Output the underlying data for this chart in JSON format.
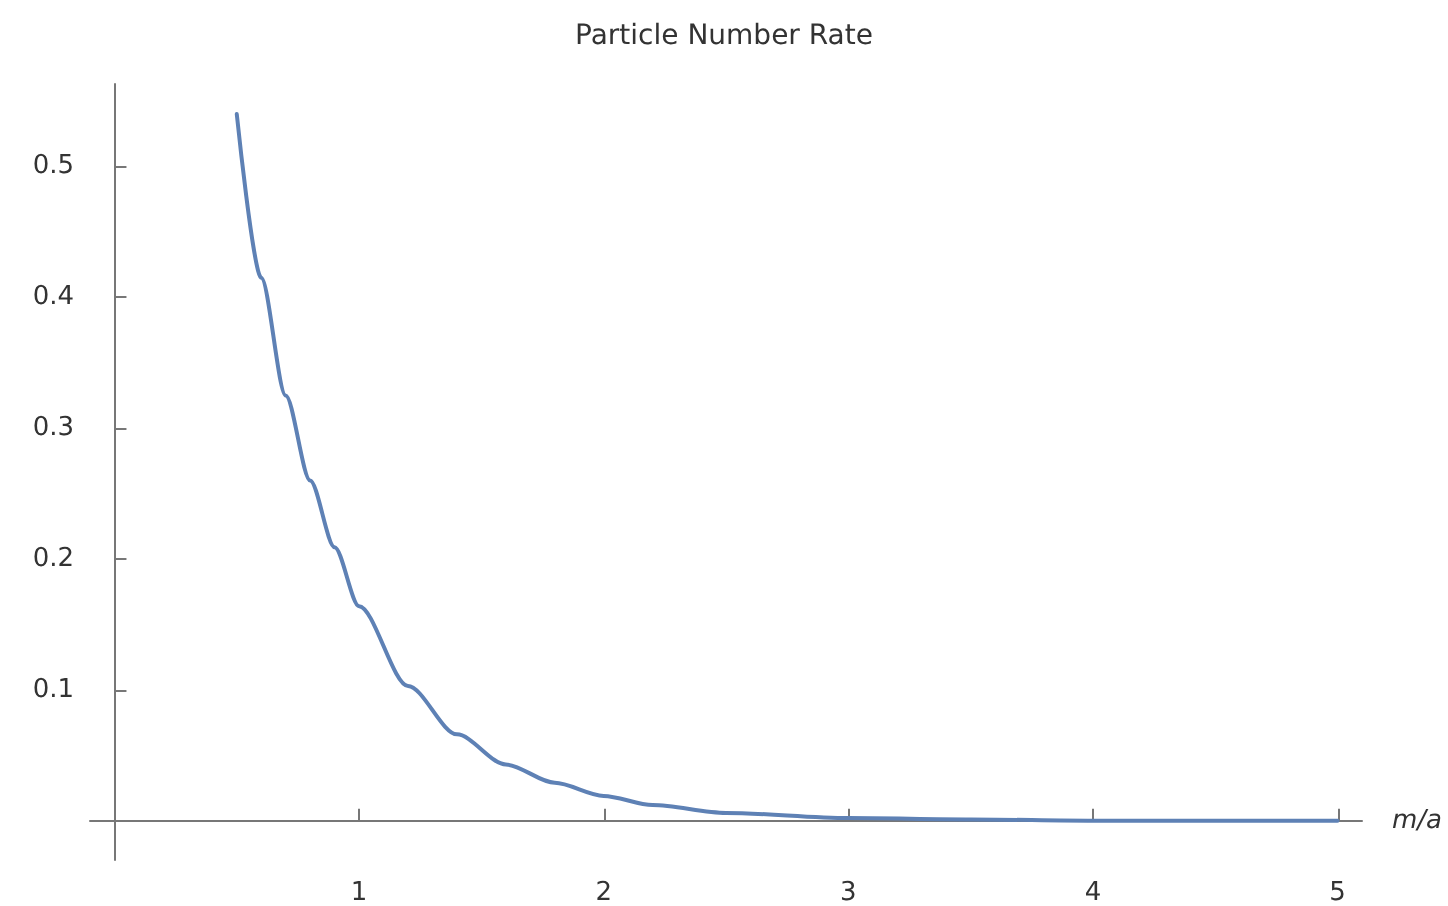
{
  "chart_data": {
    "type": "line",
    "title": "Particle Number Rate",
    "xlabel": "m/a",
    "x": [
      0.5,
      0.6,
      0.7,
      0.8,
      0.9,
      1.0,
      1.2,
      1.4,
      1.6,
      1.8,
      2.0,
      2.2,
      2.5,
      3.0,
      3.5,
      4.0,
      4.5,
      5.0
    ],
    "series": [
      {
        "color": "#5e81b5",
        "values": [
          0.54,
          0.415,
          0.325,
          0.26,
          0.209,
          0.164,
          0.103,
          0.066,
          0.043,
          0.029,
          0.019,
          0.012,
          0.006,
          0.002,
          0.001,
          0,
          0,
          0
        ]
      }
    ],
    "xlim": [
      -0.1,
      5.1
    ],
    "ylim": [
      -0.03,
      0.563
    ],
    "xticks": [
      1,
      2,
      3,
      4,
      5
    ],
    "yticks": [
      0.1,
      0.2,
      0.3,
      0.4,
      0.5
    ],
    "grid": false,
    "marker": "none",
    "line_style": "solid"
  }
}
